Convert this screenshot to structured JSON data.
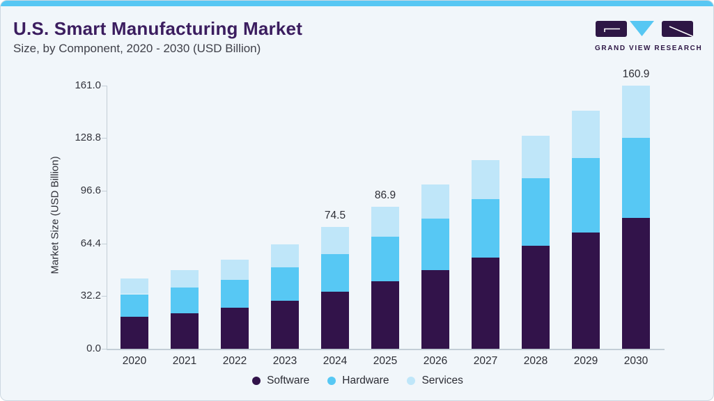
{
  "header": {
    "title": "U.S. Smart Manufacturing Market",
    "subtitle": "Size, by Component, 2020 - 2030 (USD Billion)"
  },
  "logo": {
    "text": "GRAND VIEW RESEARCH",
    "purple": "#2e1745",
    "blue": "#57c7f3"
  },
  "colors": {
    "card_background": "#f1f6fa",
    "top_strip": "#57c7f3",
    "title_text": "#3b1d5f",
    "axis_line": "#c3ced6",
    "software": "#32134a",
    "hardware": "#57c8f4",
    "services": "#bfe6f9"
  },
  "chart_data": {
    "type": "bar",
    "stacked": true,
    "title": "U.S. Smart Manufacturing Market Size, by Component, 2020 - 2030 (USD Billion)",
    "xlabel": "",
    "ylabel": "Market Size (USD Billion)",
    "categories": [
      "2020",
      "2021",
      "2022",
      "2023",
      "2024",
      "2025",
      "2026",
      "2027",
      "2028",
      "2029",
      "2030"
    ],
    "series": [
      {
        "name": "Software",
        "color": "#32134a",
        "values": [
          19.7,
          21.9,
          25.1,
          29.4,
          35.0,
          41.4,
          48.1,
          55.9,
          63.0,
          71.1,
          80.0
        ]
      },
      {
        "name": "Hardware",
        "color": "#57c8f4",
        "values": [
          13.7,
          15.6,
          17.0,
          20.3,
          22.9,
          27.0,
          31.6,
          35.5,
          41.2,
          45.4,
          49.1
        ]
      },
      {
        "name": "Services",
        "color": "#bfe6f9",
        "values": [
          9.7,
          10.5,
          12.4,
          14.0,
          16.6,
          18.5,
          20.9,
          24.1,
          26.2,
          29.2,
          31.8
        ]
      }
    ],
    "totals": [
      43.1,
      48.0,
      54.5,
      63.7,
      74.5,
      86.9,
      100.6,
      115.5,
      130.4,
      145.7,
      160.9
    ],
    "total_labels": {
      "2024": "74.5",
      "2025": "86.9",
      "2030": "160.9"
    },
    "yticks": [
      0.0,
      32.2,
      64.4,
      96.6,
      128.8,
      161.0
    ],
    "ytick_labels": [
      "0.0",
      "32.2",
      "64.4",
      "96.6",
      "128.8",
      "161.0"
    ],
    "ylim": [
      0,
      161
    ],
    "grid": false,
    "legend_position": "bottom"
  }
}
